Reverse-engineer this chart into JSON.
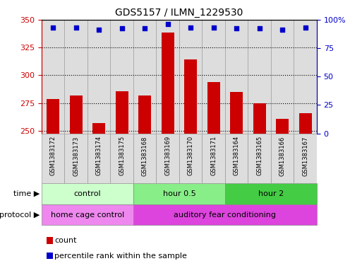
{
  "title": "GDS5157 / ILMN_1229530",
  "samples": [
    "GSM1383172",
    "GSM1383173",
    "GSM1383174",
    "GSM1383175",
    "GSM1383168",
    "GSM1383169",
    "GSM1383170",
    "GSM1383171",
    "GSM1383164",
    "GSM1383165",
    "GSM1383166",
    "GSM1383167"
  ],
  "bar_values": [
    279,
    282,
    257,
    286,
    282,
    338,
    314,
    294,
    285,
    275,
    261,
    266
  ],
  "percentile_values": [
    93,
    93,
    91,
    92,
    92,
    96,
    93,
    93,
    92,
    92,
    91,
    93
  ],
  "bar_color": "#cc0000",
  "dot_color": "#0000cc",
  "ylim_left": [
    248,
    350
  ],
  "ylim_right": [
    0,
    100
  ],
  "yticks_left": [
    250,
    275,
    300,
    325,
    350
  ],
  "yticks_right": [
    0,
    25,
    50,
    75,
    100
  ],
  "background_color": "#ffffff",
  "time_groups": [
    {
      "label": "control",
      "start": 0,
      "end": 4,
      "color": "#ccffcc"
    },
    {
      "label": "hour 0.5",
      "start": 4,
      "end": 8,
      "color": "#88ee88"
    },
    {
      "label": "hour 2",
      "start": 8,
      "end": 12,
      "color": "#44cc44"
    }
  ],
  "protocol_groups": [
    {
      "label": "home cage control",
      "start": 0,
      "end": 4,
      "color": "#ee88ee"
    },
    {
      "label": "auditory fear conditioning",
      "start": 4,
      "end": 12,
      "color": "#dd44dd"
    }
  ],
  "time_label": "time",
  "protocol_label": "protocol",
  "legend_count_color": "#cc0000",
  "legend_dot_color": "#0000cc",
  "legend_count_label": "count",
  "legend_dot_label": "percentile rank within the sample",
  "bar_width": 0.55,
  "tick_label_color_left": "#cc0000",
  "tick_label_color_right": "#0000cc",
  "sample_bg_color": "#dddddd",
  "sample_border_color": "#999999",
  "n_samples": 12
}
